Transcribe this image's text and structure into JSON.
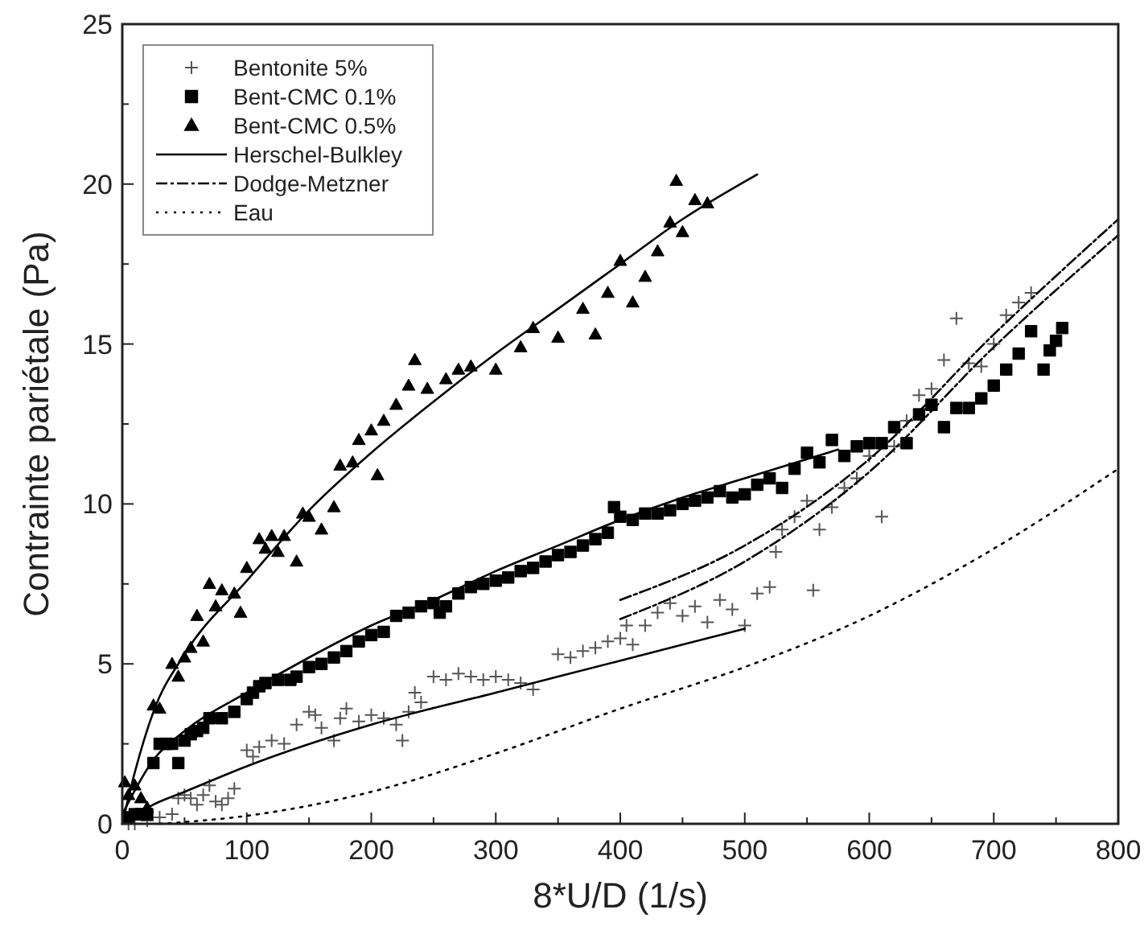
{
  "chart_data": {
    "type": "scatter",
    "xlabel": "8*U/D (1/s)",
    "ylabel": "Contrainte pariétale (Pa)",
    "xlim": [
      0,
      800
    ],
    "ylim": [
      0,
      25
    ],
    "xticks": [
      0,
      100,
      200,
      300,
      400,
      500,
      600,
      700,
      800
    ],
    "yticks": [
      0,
      5,
      10,
      15,
      20,
      25
    ],
    "legend": "top left",
    "grid": false,
    "series": [
      {
        "name": "Bentonite 5%",
        "marker": "cross",
        "color": "#555555",
        "x": [
          5,
          10,
          20,
          30,
          40,
          45,
          50,
          55,
          60,
          65,
          70,
          75,
          80,
          85,
          90,
          100,
          105,
          110,
          120,
          130,
          140,
          150,
          155,
          160,
          170,
          175,
          180,
          190,
          200,
          210,
          220,
          225,
          230,
          235,
          240,
          250,
          260,
          270,
          280,
          290,
          300,
          310,
          320,
          330,
          350,
          360,
          370,
          380,
          390,
          400,
          405,
          410,
          420,
          430,
          440,
          450,
          460,
          470,
          480,
          490,
          500,
          510,
          520,
          525,
          530,
          540,
          550,
          555,
          560,
          570,
          580,
          590,
          600,
          610,
          620,
          630,
          640,
          650,
          660,
          670,
          680,
          690,
          700,
          710,
          720,
          730
        ],
        "values": [
          0,
          0,
          0.1,
          0.2,
          0.3,
          0.8,
          0.9,
          0.8,
          0.6,
          0.9,
          1.2,
          0.7,
          0.6,
          0.8,
          1.1,
          2.3,
          2.1,
          2.4,
          2.6,
          2.5,
          3.1,
          3.5,
          3.4,
          3,
          2.6,
          3.3,
          3.6,
          3.2,
          3.4,
          3.3,
          3.1,
          2.6,
          3.5,
          4.1,
          3.8,
          4.6,
          4.5,
          4.7,
          4.6,
          4.5,
          4.6,
          4.5,
          4.4,
          4.2,
          5.3,
          5.2,
          5.4,
          5.5,
          5.7,
          5.8,
          6.2,
          5.6,
          6.2,
          6.6,
          6.9,
          6.5,
          6.8,
          6.3,
          7,
          6.7,
          6.2,
          7.2,
          7.4,
          8.5,
          9.2,
          9.6,
          10.1,
          7.3,
          9.2,
          9.9,
          10.5,
          10.8,
          11.5,
          9.6,
          11.8,
          12.6,
          13.4,
          13.6,
          14.5,
          15.8,
          14.4,
          14.3,
          15,
          15.9,
          16.3,
          16.6
        ]
      },
      {
        "name": "Bent-CMC 0.1%",
        "marker": "square",
        "color": "#000000",
        "x": [
          5,
          10,
          15,
          20,
          25,
          30,
          35,
          40,
          45,
          50,
          55,
          60,
          65,
          70,
          80,
          90,
          100,
          105,
          110,
          115,
          125,
          135,
          140,
          150,
          160,
          170,
          180,
          190,
          200,
          210,
          220,
          230,
          240,
          250,
          255,
          260,
          270,
          280,
          290,
          300,
          310,
          320,
          330,
          340,
          350,
          360,
          370,
          380,
          390,
          395,
          400,
          410,
          420,
          430,
          440,
          450,
          460,
          470,
          480,
          490,
          500,
          510,
          520,
          530,
          540,
          550,
          560,
          570,
          580,
          590,
          600,
          610,
          620,
          630,
          640,
          650,
          660,
          670,
          680,
          690,
          700,
          710,
          720,
          730,
          740,
          745,
          750,
          755
        ],
        "values": [
          0.2,
          0.3,
          0.3,
          0.3,
          1.9,
          2.5,
          2.5,
          2.5,
          1.9,
          2.6,
          2.8,
          2.9,
          3,
          3.3,
          3.3,
          3.5,
          3.9,
          4.1,
          4.3,
          4.4,
          4.5,
          4.5,
          4.6,
          4.9,
          5,
          5.2,
          5.4,
          5.7,
          5.9,
          6,
          6.5,
          6.6,
          6.8,
          6.9,
          6.6,
          6.8,
          7.2,
          7.4,
          7.5,
          7.6,
          7.7,
          7.9,
          8,
          8.2,
          8.4,
          8.5,
          8.7,
          8.9,
          9.1,
          9.9,
          9.6,
          9.5,
          9.7,
          9.7,
          9.8,
          10,
          10.1,
          10.2,
          10.4,
          10.2,
          10.3,
          10.6,
          10.8,
          10.5,
          11.1,
          11.6,
          11.3,
          12,
          11.5,
          11.8,
          11.9,
          11.9,
          12.4,
          11.9,
          12.8,
          13.1,
          12.4,
          13,
          13,
          13.3,
          13.7,
          14.2,
          14.7,
          15.4,
          14.2,
          14.8,
          15.1,
          15.5
        ]
      },
      {
        "name": "Bent-CMC 0.5%",
        "marker": "triangle",
        "color": "#000000",
        "x": [
          2,
          5,
          10,
          15,
          20,
          25,
          30,
          40,
          45,
          50,
          55,
          60,
          65,
          70,
          75,
          80,
          90,
          95,
          100,
          110,
          115,
          120,
          125,
          130,
          140,
          145,
          150,
          160,
          170,
          175,
          185,
          190,
          200,
          205,
          210,
          220,
          230,
          235,
          245,
          260,
          270,
          280,
          300,
          320,
          330,
          350,
          370,
          380,
          390,
          400,
          410,
          420,
          430,
          440,
          445,
          450,
          460,
          470
        ],
        "values": [
          1.3,
          0.9,
          1.2,
          0.8,
          0.5,
          3.7,
          3.6,
          5,
          4.6,
          5.2,
          5.5,
          6.5,
          5.7,
          7.5,
          6.8,
          7.3,
          7.2,
          6.6,
          8,
          8.9,
          8.6,
          9,
          8.5,
          9,
          8.2,
          9.7,
          9.6,
          9.2,
          9.9,
          11.2,
          11.3,
          12,
          12.3,
          10.9,
          12.6,
          13.1,
          13.7,
          14.5,
          13.6,
          13.9,
          14.2,
          14.3,
          14.2,
          14.9,
          15.5,
          15.2,
          16.1,
          15.3,
          16.6,
          17.6,
          16.3,
          17.1,
          17.9,
          18.8,
          20.1,
          18.5,
          19.5,
          19.4
        ]
      },
      {
        "name": "Herschel-Bulkley",
        "type": "line",
        "line_style": "solid",
        "color": "#000000",
        "x": [
          0,
          10,
          25,
          50,
          100,
          150,
          200,
          250,
          300,
          350,
          400,
          450,
          510
        ],
        "values": [
          0,
          1.6,
          3.5,
          5.3,
          7.6,
          9.8,
          11.6,
          13.2,
          14.7,
          16.1,
          17.5,
          18.9,
          20.3
        ]
      },
      {
        "type": "line",
        "line_style": "solid",
        "color": "#000000",
        "x": [
          0,
          25,
          50,
          100,
          150,
          200,
          250,
          300,
          350,
          400,
          450,
          500,
          575
        ],
        "values": [
          0.3,
          2,
          2.9,
          4.1,
          5.2,
          6.2,
          7,
          7.9,
          8.7,
          9.5,
          10.2,
          10.8,
          11.7
        ]
      },
      {
        "type": "line",
        "line_style": "solid",
        "color": "#000000",
        "x": [
          0,
          25,
          50,
          100,
          200,
          300,
          400,
          500
        ],
        "values": [
          0,
          0.6,
          1,
          1.8,
          3.1,
          4.1,
          5.1,
          6.1
        ]
      },
      {
        "name": "Dodge-Metzner",
        "type": "line",
        "line_style": "dashed",
        "color": "#000000",
        "x": [
          400,
          500,
          600,
          700,
          800
        ],
        "values": [
          7,
          8.7,
          11.4,
          15.3,
          18.9
        ]
      },
      {
        "type": "line",
        "line_style": "dashed",
        "color": "#000000",
        "x": [
          400,
          500,
          600,
          700,
          800
        ],
        "values": [
          6.4,
          8.2,
          11,
          14.9,
          18.4
        ]
      },
      {
        "name": "Eau",
        "type": "line",
        "line_style": "dotted",
        "color": "#000000",
        "x": [
          30,
          100,
          200,
          300,
          400,
          500,
          600,
          700,
          800
        ],
        "values": [
          0,
          0.25,
          1,
          2.2,
          3.6,
          4.9,
          6.5,
          8.6,
          11.1
        ]
      }
    ]
  }
}
